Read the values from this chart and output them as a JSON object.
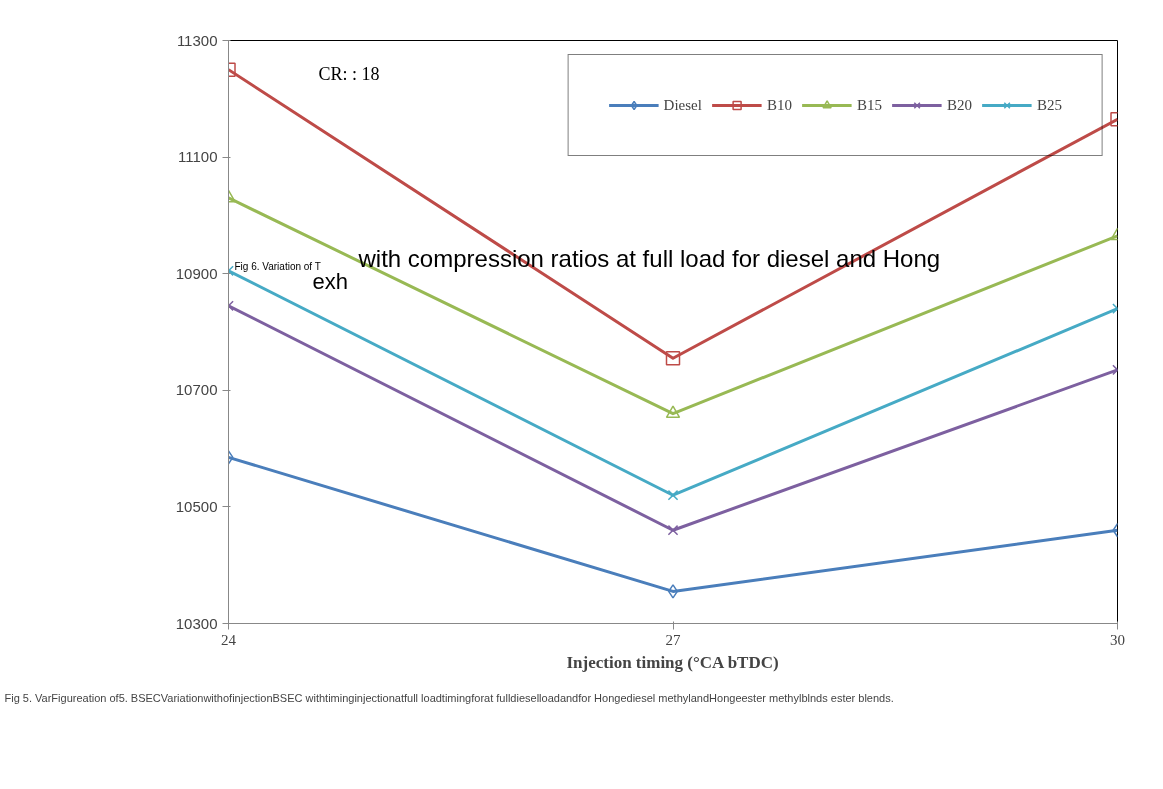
{
  "chart_data": {
    "type": "line",
    "xlabel": "Injection timing (°CA bTDC)",
    "x": [
      24,
      27,
      30
    ],
    "series": [
      {
        "name": "Diesel",
        "color": "#4a7ebb",
        "marker": "diamond",
        "values": [
          10585,
          10355,
          10460
        ]
      },
      {
        "name": "B10",
        "color": "#be4b48",
        "marker": "square",
        "values": [
          11250,
          10755,
          11165
        ]
      },
      {
        "name": "B15",
        "color": "#98b954",
        "marker": "triangle",
        "values": [
          11030,
          10660,
          10965
        ]
      },
      {
        "name": "B20",
        "color": "#7d60a0",
        "marker": "cross",
        "values": [
          10845,
          10460,
          10735
        ]
      },
      {
        "name": "B25",
        "color": "#46aac5",
        "marker": "cross",
        "values": [
          10905,
          10520,
          10840
        ]
      }
    ],
    "xlim": [
      24,
      30
    ],
    "xticks": [
      24,
      27,
      30
    ],
    "ylim": [
      10300,
      11300
    ],
    "yticks": [
      10300,
      10500,
      10700,
      10900,
      11100,
      11300
    ],
    "grid": false,
    "legend": "top right",
    "annotations": [
      "CR: : 18",
      "Fig 6. Variation of T",
      "exh",
      "with compression ratios at full load for diesel and Hong",
      "Fig 5. VarFigureation of5. BSECVariationwithofinjectionBSEC withtiminginjectionatfull loadtimingforat fulldieselloadandfor Hongediesel methylandHongeester methylblnds ester blends."
    ]
  }
}
